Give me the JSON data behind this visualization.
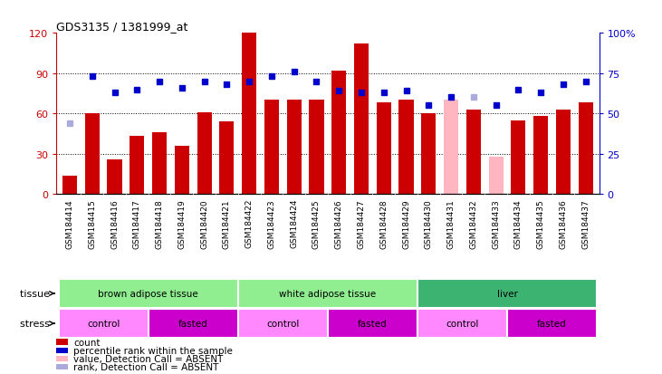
{
  "title": "GDS3135 / 1381999_at",
  "samples": [
    "GSM184414",
    "GSM184415",
    "GSM184416",
    "GSM184417",
    "GSM184418",
    "GSM184419",
    "GSM184420",
    "GSM184421",
    "GSM184422",
    "GSM184423",
    "GSM184424",
    "GSM184425",
    "GSM184426",
    "GSM184427",
    "GSM184428",
    "GSM184429",
    "GSM184430",
    "GSM184431",
    "GSM184432",
    "GSM184433",
    "GSM184434",
    "GSM184435",
    "GSM184436",
    "GSM184437"
  ],
  "count_values": [
    14,
    60,
    26,
    43,
    46,
    36,
    61,
    54,
    120,
    70,
    70,
    70,
    92,
    112,
    68,
    70,
    60,
    70,
    63,
    28,
    55,
    58,
    63,
    68
  ],
  "rank_values": [
    44,
    73,
    63,
    65,
    70,
    66,
    70,
    68,
    70,
    73,
    76,
    70,
    64,
    63,
    63,
    64,
    55,
    60,
    60,
    55,
    65,
    63,
    68,
    70
  ],
  "count_absent": [
    0,
    0,
    0,
    0,
    0,
    0,
    0,
    0,
    0,
    0,
    0,
    0,
    0,
    0,
    0,
    0,
    0,
    1,
    0,
    1,
    0,
    0,
    0,
    0
  ],
  "rank_absent": [
    1,
    0,
    0,
    0,
    0,
    0,
    0,
    0,
    0,
    0,
    0,
    0,
    0,
    0,
    0,
    0,
    0,
    0,
    1,
    0,
    0,
    0,
    0,
    0
  ],
  "tissue_groups": [
    {
      "label": "brown adipose tissue",
      "start": 0,
      "end": 7,
      "color": "#90EE90"
    },
    {
      "label": "white adipose tissue",
      "start": 8,
      "end": 15,
      "color": "#90EE90"
    },
    {
      "label": "liver",
      "start": 16,
      "end": 23,
      "color": "#3CB371"
    }
  ],
  "stress_groups": [
    {
      "label": "control",
      "start": 0,
      "end": 3,
      "color": "#FF88FF"
    },
    {
      "label": "fasted",
      "start": 4,
      "end": 7,
      "color": "#CC00CC"
    },
    {
      "label": "control",
      "start": 8,
      "end": 11,
      "color": "#FF88FF"
    },
    {
      "label": "fasted",
      "start": 12,
      "end": 15,
      "color": "#CC00CC"
    },
    {
      "label": "control",
      "start": 16,
      "end": 19,
      "color": "#FF88FF"
    },
    {
      "label": "fasted",
      "start": 20,
      "end": 23,
      "color": "#CC00CC"
    }
  ],
  "ylim_left": [
    0,
    120
  ],
  "ylim_right": [
    0,
    100
  ],
  "yticks_left": [
    0,
    30,
    60,
    90,
    120
  ],
  "yticks_right": [
    0,
    25,
    50,
    75,
    100
  ],
  "ytick_labels_right": [
    "0",
    "25",
    "50",
    "75",
    "100%"
  ],
  "bar_color_normal": "#CC0000",
  "bar_color_absent": "#FFB6C1",
  "rank_color_normal": "#0000CC",
  "rank_color_absent": "#AAAADD",
  "background_color": "#FFFFFF",
  "xticklabel_bg": "#C8C8C8",
  "axis_label_color_left": "#CC0000",
  "axis_label_color_right": "#0000CC",
  "legend_items": [
    {
      "label": "count",
      "color": "#CC0000"
    },
    {
      "label": "percentile rank within the sample",
      "color": "#0000CC"
    },
    {
      "label": "value, Detection Call = ABSENT",
      "color": "#FFB6C1"
    },
    {
      "label": "rank, Detection Call = ABSENT",
      "color": "#AAAADD"
    }
  ]
}
